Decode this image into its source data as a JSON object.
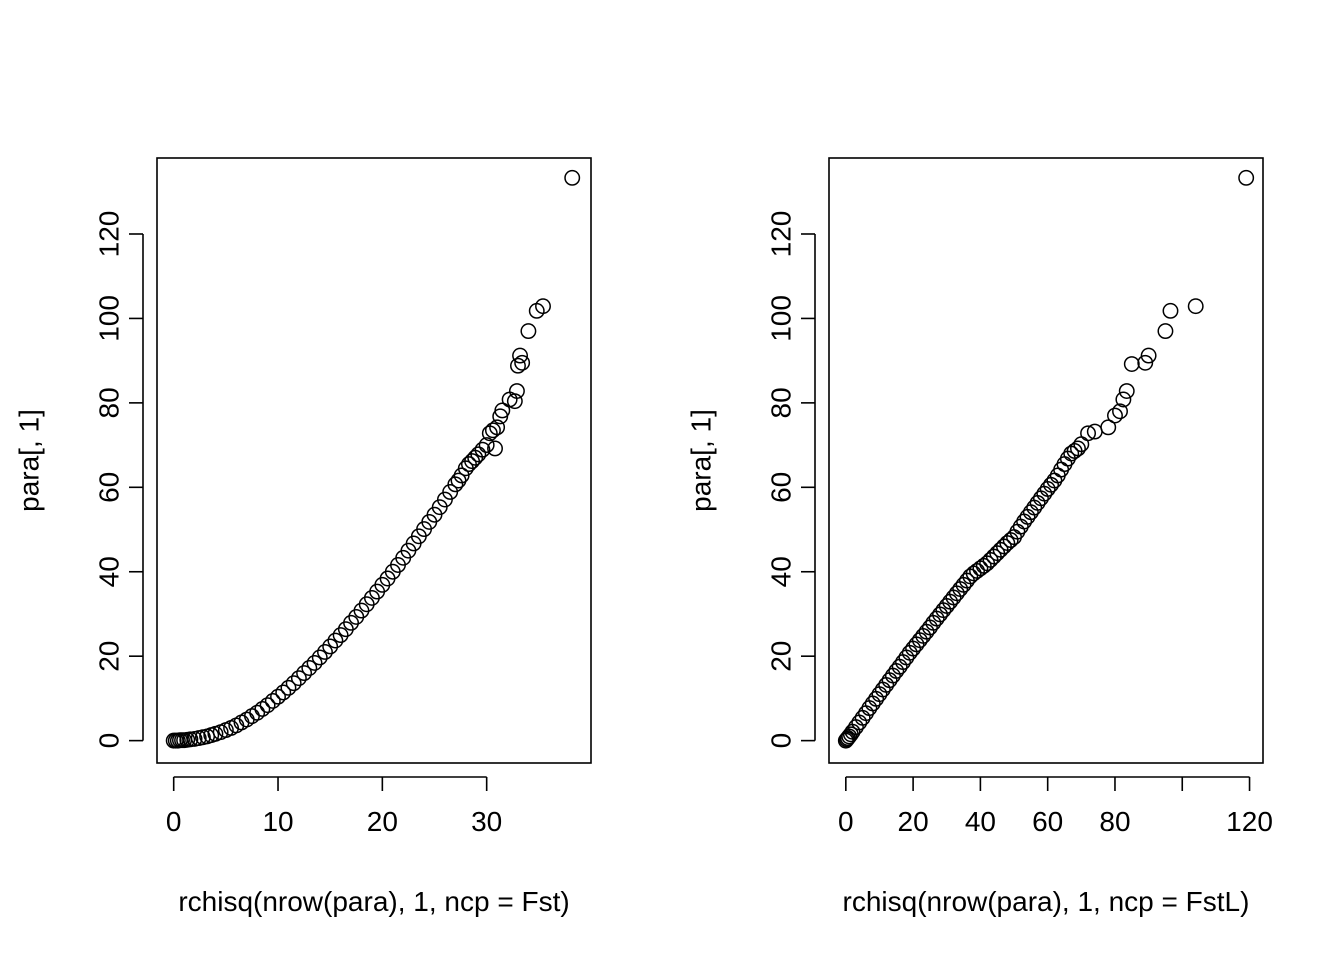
{
  "chart_data": [
    {
      "type": "scatter",
      "title": "",
      "xlabel": "rchisq(nrow(para), 1, ncp = Fst)",
      "ylabel": "para[, 1]",
      "xlim": [
        -1.6,
        40
      ],
      "ylim": [
        -5.3,
        138
      ],
      "xticks": [
        0,
        10,
        20,
        30
      ],
      "xtick_labels": [
        "0",
        "10",
        "20",
        "30"
      ],
      "yticks": [
        0,
        20,
        40,
        60,
        80,
        100,
        120
      ],
      "ytick_labels": [
        "0",
        "20",
        "40",
        "60",
        "80",
        "100",
        "120"
      ],
      "grid": false,
      "legend": "none",
      "points_color": "#000000",
      "series": [
        {
          "x": [
            0,
            0.2,
            0.4,
            0.6,
            0.8,
            1.0,
            1.3,
            1.6,
            2.0,
            2.4,
            2.8,
            3.2,
            3.6,
            4.0,
            4.5,
            5.0,
            5.5,
            6.0,
            6.5,
            7.0,
            7.5,
            8.0,
            8.5,
            9.0,
            9.5,
            10.0,
            10.5,
            11.0,
            11.5,
            12.0,
            12.5,
            13.0,
            13.5,
            14.0,
            14.5,
            15.0,
            15.5,
            16.0,
            16.5,
            17.0,
            17.5,
            18.0,
            18.5,
            19.0,
            19.5,
            20.0,
            20.5,
            21.0,
            21.5,
            22.0,
            22.5,
            23.0,
            23.5,
            24.0,
            24.5,
            25.0,
            25.5,
            26.0,
            26.5,
            27.0,
            27.3,
            27.6,
            28.0,
            28.3,
            28.6,
            28.9,
            29.2,
            29.6,
            30.0,
            30.3,
            30.6,
            30.8,
            31.0,
            31.3,
            31.5,
            32.2,
            32.7,
            32.9,
            33.0,
            33.2,
            33.4,
            34.0,
            34.8,
            35.4,
            38.2
          ],
          "y": [
            0,
            0,
            0,
            0.1,
            0.1,
            0.1,
            0.2,
            0.3,
            0.4,
            0.6,
            0.8,
            1.0,
            1.3,
            1.6,
            2.0,
            2.5,
            3.0,
            3.6,
            4.3,
            5.0,
            5.8,
            6.6,
            7.5,
            8.4,
            9.4,
            10.4,
            11.4,
            12.5,
            13.6,
            14.8,
            16.0,
            17.2,
            18.4,
            19.7,
            21.0,
            22.3,
            23.7,
            25.0,
            26.4,
            27.9,
            29.3,
            30.8,
            32.3,
            33.8,
            35.3,
            36.9,
            38.4,
            40.0,
            41.6,
            43.3,
            45.0,
            46.7,
            48.4,
            50.1,
            51.8,
            53.5,
            55.3,
            57.1,
            58.9,
            60.7,
            61.6,
            62.8,
            64.5,
            65.5,
            66.2,
            67.0,
            67.8,
            68.9,
            70.0,
            72.8,
            73.5,
            69.2,
            74.2,
            76.8,
            78.2,
            80.8,
            80.4,
            82.8,
            88.8,
            91.2,
            89.5,
            97.0,
            101.8,
            102.9,
            133.3
          ]
        }
      ]
    },
    {
      "type": "scatter",
      "title": "",
      "xlabel": "rchisq(nrow(para), 1, ncp = FstL)",
      "ylabel": "para[, 1]",
      "xlim": [
        -5,
        124
      ],
      "ylim": [
        -5.3,
        138
      ],
      "xticks": [
        0,
        20,
        40,
        60,
        80,
        100,
        120
      ],
      "xtick_labels": [
        "0",
        "20",
        "40",
        "60",
        "80",
        "",
        "120"
      ],
      "yticks": [
        0,
        20,
        40,
        60,
        80,
        100,
        120
      ],
      "ytick_labels": [
        "0",
        "20",
        "40",
        "60",
        "80",
        "100",
        "120"
      ],
      "grid": false,
      "legend": "none",
      "points_color": "#000000",
      "series": [
        {
          "x": [
            0,
            0.3,
            0.6,
            1.0,
            1.5,
            2,
            3,
            4,
            5,
            6,
            7,
            8,
            9,
            10,
            11,
            12,
            13,
            14,
            15,
            16,
            17,
            18,
            19,
            20,
            21,
            22,
            23,
            24,
            25,
            26,
            27,
            28,
            29,
            30,
            31,
            32,
            33,
            34,
            35,
            36,
            37,
            38,
            39,
            40,
            41,
            42,
            43,
            44,
            45,
            46,
            47,
            48,
            49,
            50,
            51,
            52,
            53,
            54,
            55,
            56,
            57,
            58,
            59,
            60,
            61,
            62,
            63,
            64,
            65,
            66,
            67,
            68,
            69,
            70,
            72,
            74,
            78,
            80,
            81.5,
            82.5,
            83.5,
            85,
            89,
            90,
            95,
            96.5,
            104,
            119
          ],
          "y": [
            0,
            0.3,
            0.6,
            1.0,
            1.5,
            2.1,
            3.2,
            4.3,
            5.4,
            6.5,
            7.7,
            8.8,
            9.9,
            11.0,
            12.1,
            13.2,
            14.3,
            15.4,
            16.5,
            17.5,
            18.6,
            19.7,
            20.8,
            21.8,
            22.8,
            23.8,
            24.8,
            25.8,
            26.8,
            27.9,
            28.9,
            29.9,
            30.9,
            31.9,
            32.9,
            33.9,
            34.9,
            35.9,
            36.9,
            37.9,
            38.9,
            39.6,
            40.2,
            40.8,
            41.4,
            42.0,
            42.8,
            43.6,
            44.4,
            45.2,
            46.0,
            46.8,
            47.5,
            48.2,
            49.5,
            50.7,
            51.9,
            53.0,
            54.1,
            55.2,
            56.3,
            57.4,
            58.5,
            59.6,
            60.6,
            61.6,
            62.8,
            64.2,
            65.5,
            66.8,
            68.0,
            68.6,
            69.2,
            70.2,
            72.8,
            73.2,
            74.2,
            77.0,
            78.0,
            80.8,
            82.8,
            89.2,
            89.5,
            91.2,
            97.0,
            101.8,
            102.9,
            133.3
          ]
        }
      ]
    }
  ]
}
